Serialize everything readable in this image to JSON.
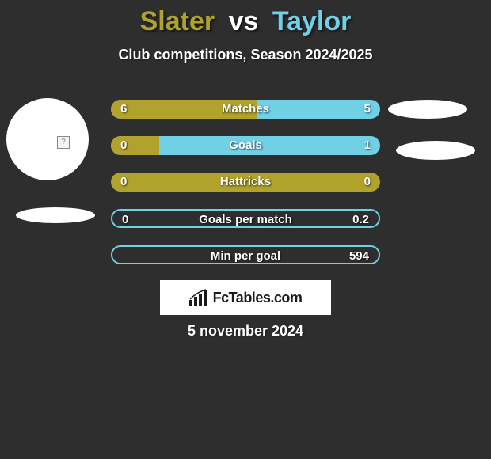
{
  "background_color": "#2e2e2e",
  "title": {
    "player1": "Slater",
    "vs": "vs",
    "player2": "Taylor",
    "player1_color": "#b0a22c",
    "vs_color": "#ffffff",
    "player2_color": "#6fd0e6"
  },
  "subtitle": "Club competitions, Season 2024/2025",
  "colors": {
    "left_fill": "#b0a22c",
    "right_fill": "#6fd0e6",
    "bar_bg_when_left_full": "#b0a22c",
    "bar_bg_neutral": "#6fd0e6"
  },
  "bars": [
    {
      "label": "Matches",
      "left_value": "6",
      "right_value": "5",
      "left_pct": 54.5,
      "right_pct": 45.5,
      "mode": "split"
    },
    {
      "label": "Goals",
      "left_value": "0",
      "right_value": "1",
      "left_pct": 18,
      "right_pct": 82,
      "mode": "split"
    },
    {
      "label": "Hattricks",
      "left_value": "0",
      "right_value": "0",
      "left_pct": 100,
      "right_pct": 0,
      "mode": "left_full"
    },
    {
      "label": "Goals per match",
      "left_value": "0",
      "right_value": "0.2",
      "left_pct": 0,
      "right_pct": 100,
      "mode": "right_full_outline"
    },
    {
      "label": "Min per goal",
      "left_value": "",
      "right_value": "594",
      "left_pct": 0,
      "right_pct": 100,
      "mode": "right_full_outline"
    }
  ],
  "footer_brand": "FcTables.com",
  "date": "5 november 2024"
}
